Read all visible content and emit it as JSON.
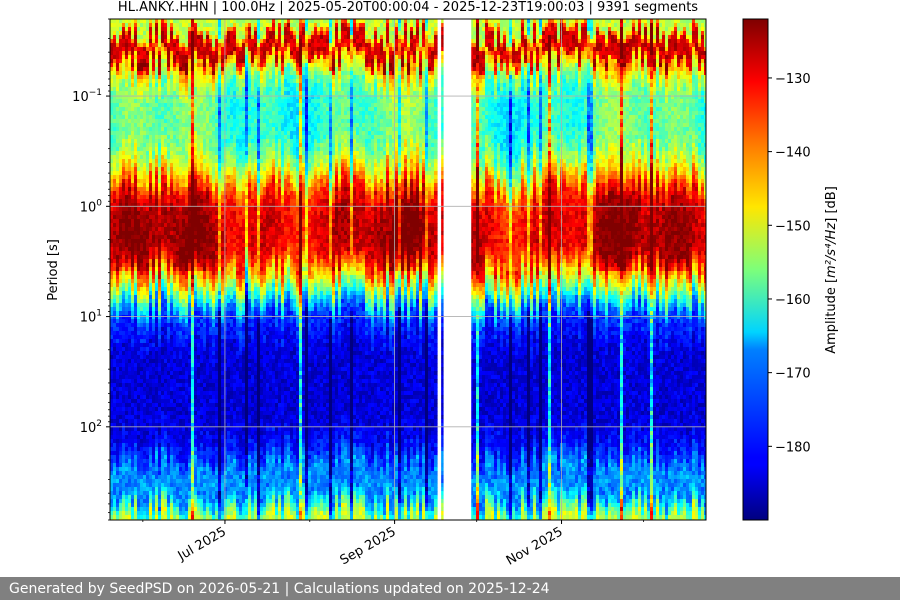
{
  "chart_data": {
    "type": "heatmap",
    "title": "HL.ANKY..HHN | 100.0Hz | 2025-05-20T00:00:04 - 2025-12-23T19:00:03 | 9391 segments",
    "x": {
      "range": [
        "2025-05-20T00:00:04",
        "2025-12-23T19:00:03"
      ],
      "ticks": [
        {
          "date": "2025-07-01",
          "label": "Jul 2025"
        },
        {
          "date": "2025-09-01",
          "label": "Sep 2025"
        },
        {
          "date": "2025-11-01",
          "label": "Nov 2025"
        }
      ]
    },
    "y": {
      "label": "Period [s]",
      "scale": "log",
      "inverted": true,
      "range": [
        0.02,
        700
      ],
      "ticks": [
        {
          "value": 0.1,
          "label": "10",
          "exp": "−1"
        },
        {
          "value": 1,
          "label": "10",
          "exp": "0"
        },
        {
          "value": 10,
          "label": "10",
          "exp": "1"
        },
        {
          "value": 100,
          "label": "10",
          "exp": "2"
        }
      ]
    },
    "colorbar": {
      "label_main": "Amplitude [",
      "label_math": "m²/s⁴/Hz",
      "label_tail": "] [dB]",
      "range": [
        -190,
        -122
      ],
      "colormap": "jet",
      "ticks": [
        {
          "value": -130,
          "label": "−130"
        },
        {
          "value": -140,
          "label": "−140"
        },
        {
          "value": -150,
          "label": "−150"
        },
        {
          "value": -160,
          "label": "−160"
        },
        {
          "value": -170,
          "label": "−170"
        },
        {
          "value": -180,
          "label": "−180"
        }
      ]
    },
    "grid": true,
    "data_gaps": [
      [
        "2025-09-17",
        "2025-09-18"
      ],
      [
        "2025-09-19",
        "2025-09-29"
      ]
    ],
    "period_profile": [
      {
        "period": 0.02,
        "db": -152
      },
      {
        "period": 0.025,
        "db": -152
      },
      {
        "period": 0.03,
        "db": -127
      },
      {
        "period": 0.045,
        "db": -127
      },
      {
        "period": 0.05,
        "db": -144
      },
      {
        "period": 0.09,
        "db": -160
      },
      {
        "period": 0.25,
        "db": -160
      },
      {
        "period": 0.45,
        "db": -150
      },
      {
        "period": 0.8,
        "db": -130
      },
      {
        "period": 1.5,
        "db": -126
      },
      {
        "period": 3.0,
        "db": -128
      },
      {
        "period": 4.5,
        "db": -145
      },
      {
        "period": 7.0,
        "db": -163
      },
      {
        "period": 9.5,
        "db": -177
      },
      {
        "period": 20,
        "db": -184
      },
      {
        "period": 100,
        "db": -184
      },
      {
        "period": 180,
        "db": -179
      },
      {
        "period": 250,
        "db": -170
      },
      {
        "period": 400,
        "db": -174
      },
      {
        "period": 550,
        "db": -160
      },
      {
        "period": 700,
        "db": -150
      }
    ]
  },
  "footer": {
    "text": "Generated by SeedPSD on 2026-05-21 | Calculations updated on 2025-12-24"
  }
}
